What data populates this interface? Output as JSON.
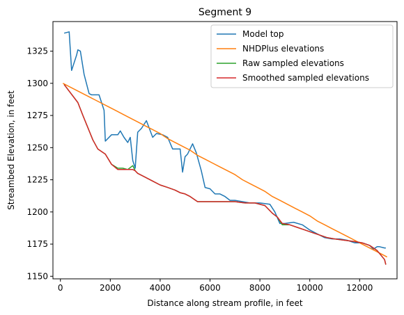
{
  "chart_data": {
    "type": "line",
    "title": "Segment 9",
    "xlabel": "Distance along stream profile, in feet",
    "ylabel": "Streambed Elevation, in feet",
    "xlim": [
      -300,
      13500
    ],
    "ylim": [
      1148,
      1348
    ],
    "xticks": [
      0,
      2000,
      4000,
      6000,
      8000,
      10000,
      12000
    ],
    "xtick_labels": [
      "0",
      "2000",
      "4000",
      "6000",
      "8000",
      "10000",
      "12000"
    ],
    "yticks": [
      1150,
      1175,
      1200,
      1225,
      1250,
      1275,
      1300,
      1325
    ],
    "ytick_labels": [
      "1150",
      "1175",
      "1200",
      "1225",
      "1250",
      "1275",
      "1300",
      "1325"
    ],
    "legend_position": "upper right",
    "series": [
      {
        "name": "Model top",
        "color": "#1f77b4",
        "x": [
          150,
          350,
          450,
          650,
          700,
          800,
          950,
          1150,
          1250,
          1550,
          1750,
          1800,
          2050,
          2300,
          2400,
          2550,
          2700,
          2800,
          2900,
          3000,
          3100,
          3250,
          3450,
          3700,
          3850,
          4100,
          4300,
          4500,
          4800,
          4900,
          5000,
          5100,
          5300,
          5450,
          5650,
          5800,
          6000,
          6200,
          6400,
          6600,
          6800,
          7000,
          7300,
          7600,
          8000,
          8400,
          8600,
          8800,
          9000,
          9350,
          9700,
          10000,
          10300,
          10600,
          10900,
          11200,
          11500,
          11800,
          12100,
          12400,
          12550,
          12700,
          12800,
          13000,
          13050
        ],
        "y": [
          1339,
          1340,
          1310,
          1322,
          1326,
          1325,
          1307,
          1292,
          1291,
          1291,
          1279,
          1255,
          1260,
          1260,
          1263,
          1258,
          1254,
          1258,
          1240,
          1234,
          1262,
          1265,
          1271,
          1258,
          1261,
          1260,
          1258,
          1249,
          1249,
          1231,
          1243,
          1245,
          1253,
          1246,
          1232,
          1219,
          1218,
          1214,
          1214,
          1212,
          1209,
          1209,
          1208,
          1207,
          1207,
          1206,
          1200,
          1191,
          1191,
          1192,
          1190,
          1186,
          1183,
          1180,
          1179,
          1179,
          1178,
          1176,
          1176,
          1174,
          1171,
          1173,
          1173,
          1172,
          1172
        ]
      },
      {
        "name": "NHDPlus elevations",
        "color": "#ff7f0e",
        "x": [
          100,
          400,
          700,
          1000,
          1300,
          1600,
          1900,
          2200,
          2500,
          2800,
          3100,
          3400,
          3700,
          4000,
          4300,
          4600,
          4900,
          5200,
          5500,
          5800,
          6100,
          6400,
          6700,
          7000,
          7300,
          7600,
          7900,
          8200,
          8500,
          8800,
          9100,
          9400,
          9700,
          10000,
          10300,
          10600,
          10900,
          11200,
          11500,
          11800,
          12100,
          12400,
          12700,
          13000,
          13100
        ],
        "y": [
          1300,
          1297,
          1294,
          1291,
          1288,
          1285,
          1282,
          1279,
          1276,
          1273,
          1270,
          1267,
          1264,
          1261,
          1257,
          1254,
          1251,
          1248,
          1244,
          1241,
          1238,
          1235,
          1232,
          1229,
          1225,
          1222,
          1219,
          1216,
          1212,
          1209,
          1206,
          1203,
          1200,
          1197,
          1193,
          1190,
          1187,
          1184,
          1181,
          1178,
          1175,
          1172,
          1169,
          1166,
          1165
        ]
      },
      {
        "name": "Raw sampled elevations",
        "color": "#2ca02c",
        "x": [
          150,
          700,
          900,
          1300,
          1500,
          1800,
          2050,
          2300,
          2500,
          2700,
          2900,
          3000,
          3100,
          3400,
          3700,
          4000,
          4300,
          4600,
          4800,
          5000,
          5200,
          5500,
          5800,
          6200,
          6600,
          7000,
          7400,
          7800,
          8200,
          8500,
          8700,
          8900,
          9200,
          9500,
          9800,
          10100,
          10400,
          10700,
          11000,
          11400,
          11800,
          12100,
          12400,
          12700,
          13000,
          13050
        ],
        "y": [
          1299,
          1285,
          1275,
          1256,
          1249,
          1245,
          1237,
          1234,
          1234,
          1233,
          1236,
          1232,
          1230,
          1227,
          1224,
          1221,
          1219,
          1217,
          1215,
          1214,
          1212,
          1208,
          1208,
          1208,
          1208,
          1208,
          1207,
          1207,
          1205,
          1199,
          1196,
          1190,
          1190,
          1188,
          1186,
          1184,
          1182,
          1180,
          1179,
          1178,
          1177,
          1176,
          1174,
          1170,
          1163,
          1159
        ]
      },
      {
        "name": "Smoothed sampled elevations",
        "color": "#d62728",
        "x": [
          150,
          700,
          900,
          1300,
          1500,
          1800,
          2050,
          2300,
          2500,
          2700,
          2900,
          3000,
          3100,
          3400,
          3700,
          4000,
          4300,
          4600,
          4800,
          5000,
          5200,
          5500,
          5800,
          6200,
          6600,
          7000,
          7400,
          7800,
          8200,
          8500,
          8700,
          8900,
          9200,
          9500,
          9800,
          10100,
          10400,
          10700,
          11000,
          11400,
          11800,
          12100,
          12400,
          12700,
          13000,
          13050
        ],
        "y": [
          1299,
          1285,
          1275,
          1256,
          1249,
          1245,
          1237,
          1233,
          1233,
          1233,
          1233,
          1232,
          1230,
          1227,
          1224,
          1221,
          1219,
          1217,
          1215,
          1214,
          1212,
          1208,
          1208,
          1208,
          1208,
          1208,
          1207,
          1207,
          1205,
          1199,
          1196,
          1191,
          1190,
          1188,
          1186,
          1184,
          1182,
          1180,
          1179,
          1178,
          1177,
          1176,
          1174,
          1170,
          1163,
          1159
        ]
      }
    ]
  }
}
